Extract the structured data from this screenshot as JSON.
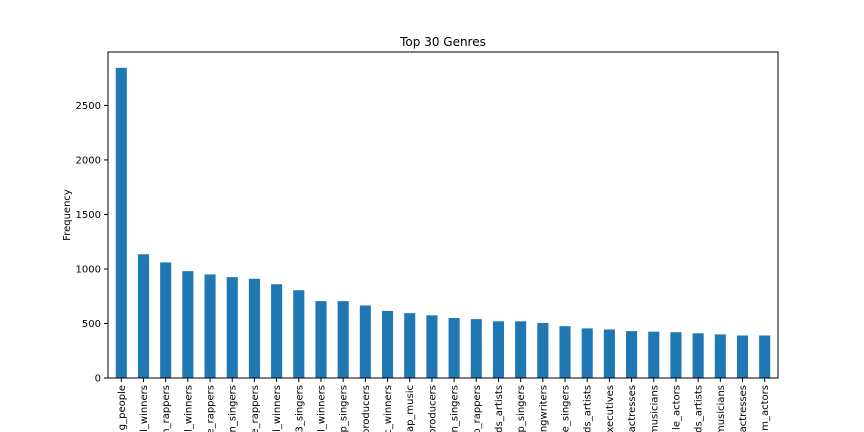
{
  "chart_data": {
    "type": "bar",
    "title": "Top 30 Genres",
    "xlabel": "",
    "ylabel": "Frequency",
    "ylim": [
      0,
      2990
    ],
    "yticks": [
      0,
      500,
      1000,
      1500,
      2000,
      2500
    ],
    "grid": false,
    "bar_color": "#1f77b4",
    "categories": [
      "g_people",
      "l_winners",
      "n_rappers",
      "l_winners",
      "e_rappers",
      "n_singers",
      "e_rappers",
      "l_winners",
      "3_singers",
      "l_winners",
      "p_singers",
      "producers",
      "c_winners",
      "ap_music",
      "producers",
      "n_singers",
      "p_rappers",
      "ds_artists",
      "p_singers",
      "ngwriters",
      "e_singers",
      "ds_artists",
      "executives",
      "actresses",
      "musicians",
      "le_actors",
      "ds_artists",
      "musicians",
      "actresses",
      "m_actors"
    ],
    "values": [
      2845,
      1135,
      1060,
      980,
      950,
      925,
      910,
      860,
      805,
      705,
      705,
      665,
      615,
      595,
      575,
      550,
      540,
      520,
      520,
      505,
      475,
      455,
      445,
      430,
      425,
      420,
      410,
      400,
      390,
      390
    ]
  }
}
